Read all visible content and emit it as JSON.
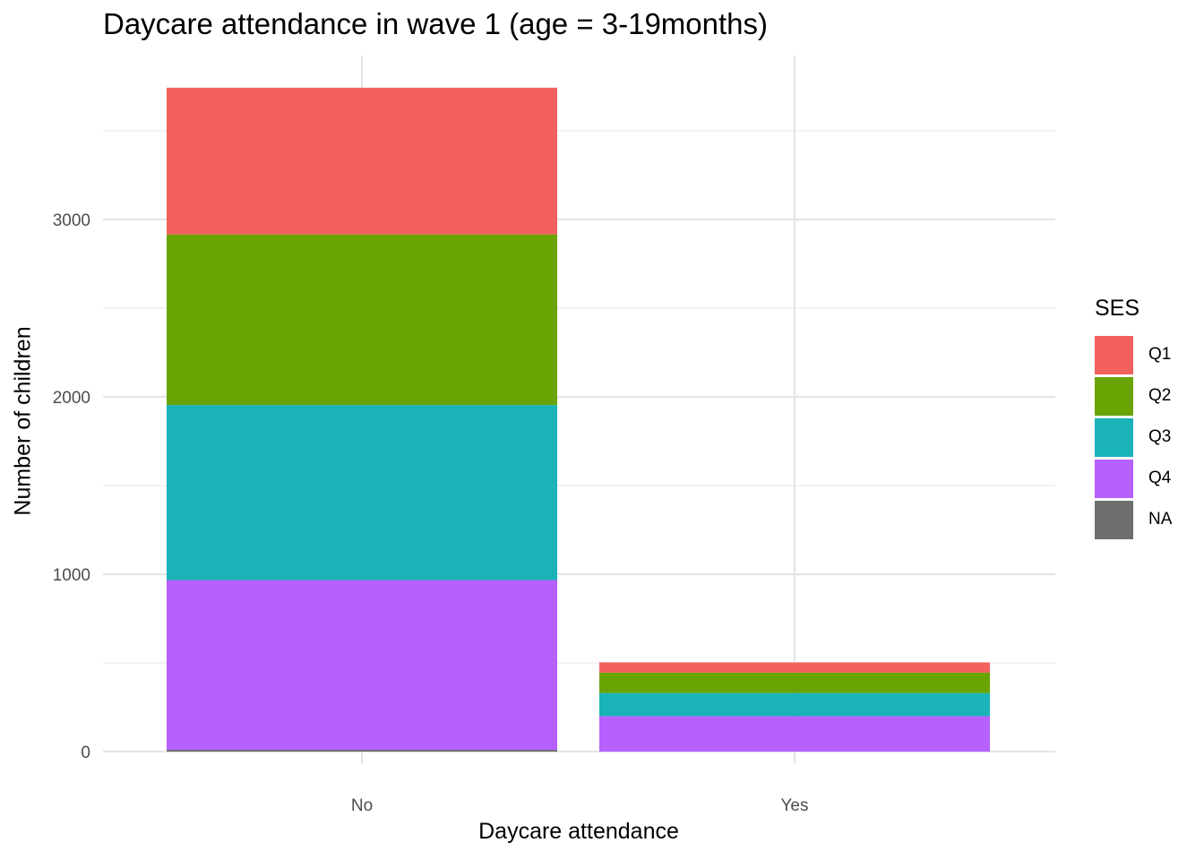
{
  "chart_data": {
    "type": "bar",
    "stacked": true,
    "title": "Daycare attendance in wave 1 (age = 3-19months)",
    "xlabel": "Daycare attendance",
    "ylabel": "Number of children",
    "categories": [
      "No",
      "Yes"
    ],
    "yticks": [
      0,
      1000,
      2000,
      3000
    ],
    "ylim": [
      0,
      3900
    ],
    "grid": true,
    "legend_title": "SES",
    "legend_position": "right",
    "series": [
      {
        "name": "NA",
        "color": "#6e6e6e",
        "values": [
          10,
          0
        ]
      },
      {
        "name": "Q4",
        "color": "#b660ff",
        "values": [
          957,
          200
        ]
      },
      {
        "name": "Q3",
        "color": "#19b3b8",
        "values": [
          987,
          130
        ]
      },
      {
        "name": "Q2",
        "color": "#6aa304",
        "values": [
          962,
          115
        ]
      },
      {
        "name": "Q1",
        "color": "#f3615d",
        "values": [
          827,
          58
        ]
      }
    ],
    "legend_order": [
      "Q1",
      "Q2",
      "Q3",
      "Q4",
      "NA"
    ]
  }
}
